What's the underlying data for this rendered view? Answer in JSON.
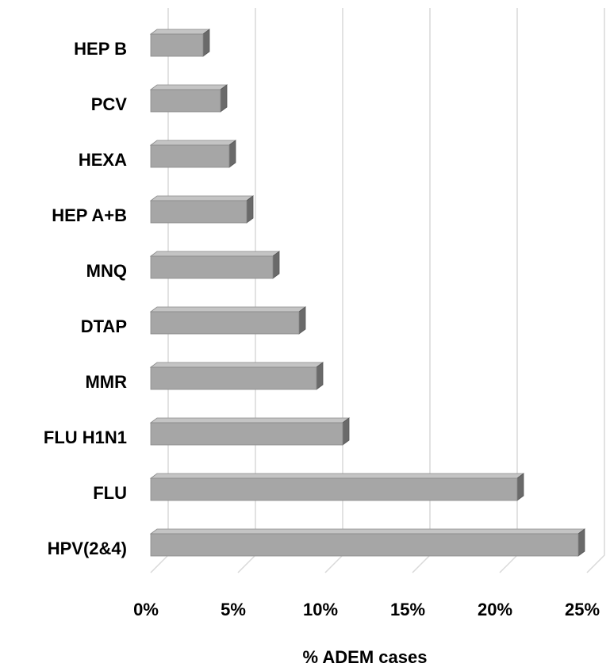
{
  "chart_data": {
    "type": "bar3d_horizontal",
    "x_label": "% ADEM cases",
    "categories": [
      "HEP B",
      "PCV",
      "HEXA",
      "HEP A+B",
      "MNQ",
      "DTAP",
      "MMR",
      "FLU H1N1",
      "FLU",
      "HPV(2&4)"
    ],
    "values": [
      3,
      4,
      4.5,
      5.5,
      7,
      8.5,
      9.5,
      11,
      21,
      24.5
    ],
    "color": "#a6a6a6",
    "xlim": [
      0,
      25
    ],
    "xticks": [
      {
        "value": 0,
        "label": "0%"
      },
      {
        "value": 5,
        "label": "5%"
      },
      {
        "value": 10,
        "label": "10%"
      },
      {
        "value": 15,
        "label": "15%"
      },
      {
        "value": 20,
        "label": "20%"
      },
      {
        "value": 25,
        "label": "25%"
      }
    ],
    "grid": true
  }
}
